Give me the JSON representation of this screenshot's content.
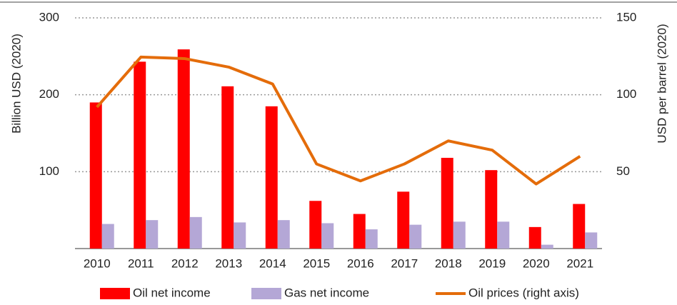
{
  "chart_data": {
    "type": "bar_line",
    "categories": [
      "2010",
      "2011",
      "2012",
      "2013",
      "2014",
      "2015",
      "2016",
      "2017",
      "2018",
      "2019",
      "2020",
      "2021"
    ],
    "ylabel": "Billion USD (2020)",
    "y2label": "USD per barrel (2020)",
    "ylim": [
      0,
      300
    ],
    "yticks": [
      100,
      200,
      300
    ],
    "y2lim": [
      0,
      150
    ],
    "y2ticks": [
      50,
      100,
      150
    ],
    "grid": true,
    "legend": "bottom",
    "series": [
      {
        "name": "Oil net income",
        "color": "#ff0000",
        "type": "bar",
        "values": [
          190,
          243,
          259,
          211,
          185,
          62,
          45,
          74,
          118,
          102,
          28,
          58
        ]
      },
      {
        "name": "Gas net income",
        "color": "#b4a7d6",
        "type": "bar",
        "values": [
          32,
          37,
          41,
          34,
          37,
          33,
          25,
          31,
          35,
          35,
          5,
          21
        ]
      },
      {
        "name": "Oil prices (right axis)",
        "color": "#e46c0a",
        "type": "line",
        "axis": "y2",
        "values": [
          92,
          124.5,
          123.5,
          118,
          107,
          55,
          44,
          55,
          70,
          64,
          42,
          60
        ]
      }
    ]
  }
}
